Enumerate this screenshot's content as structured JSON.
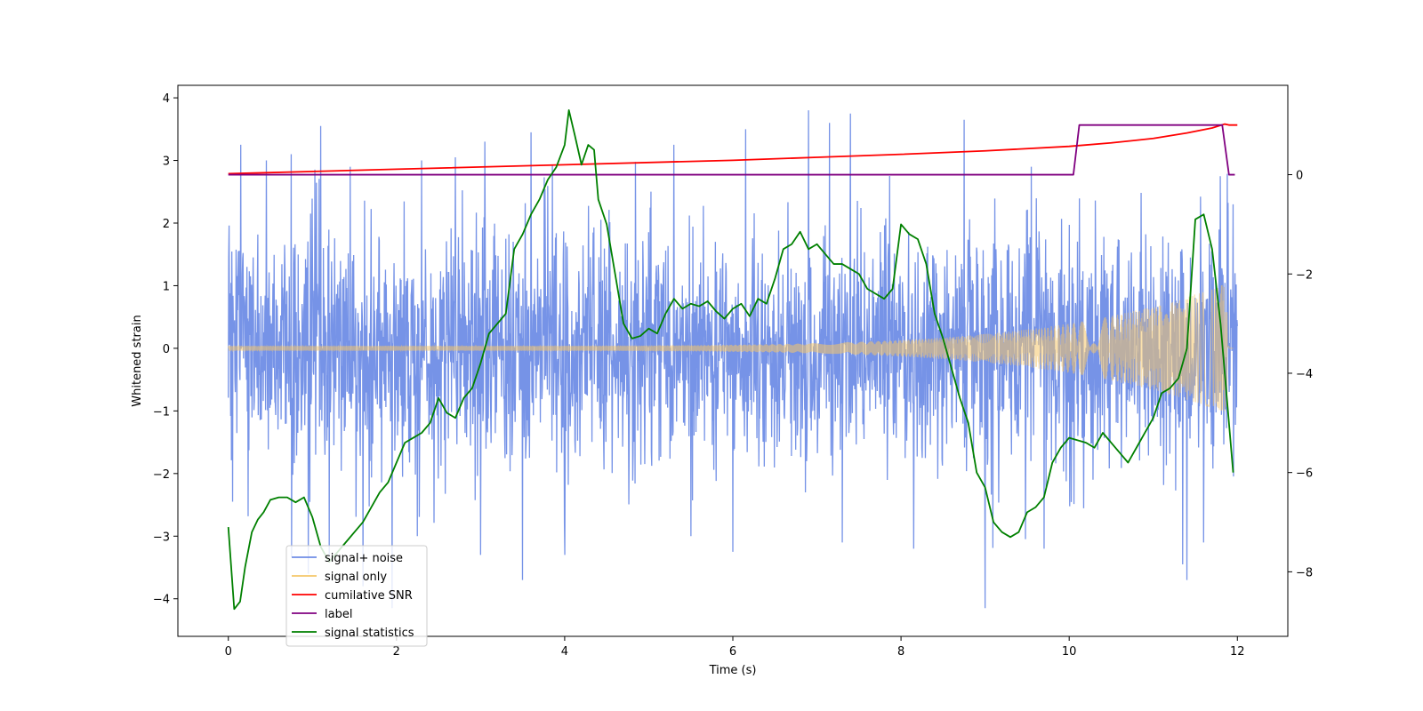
{
  "chart_data": {
    "type": "line",
    "xlabel": "Time (s)",
    "ylabel": "Whitened strain",
    "xlim": [
      -0.6,
      12.6
    ],
    "ylim": [
      -4.6,
      4.2
    ],
    "y2lim": [
      -9.3,
      1.8
    ],
    "xticks": [
      0,
      2,
      4,
      6,
      8,
      10,
      12
    ],
    "yticks": [
      -4,
      -3,
      -2,
      -1,
      0,
      1,
      2,
      3,
      4
    ],
    "y2ticks": [
      -8,
      -6,
      -4,
      -2,
      0
    ],
    "legend_location": "lower-left",
    "series": [
      {
        "name": "signal+ noise",
        "color": "#6f8de6",
        "axis": "left",
        "kind": "noise",
        "t_range": [
          0,
          12
        ],
        "upper_typical": 2.0,
        "lower_typical": -2.0,
        "peaks": [
          [
            0.15,
            3.25
          ],
          [
            0.45,
            3.0
          ],
          [
            0.75,
            3.1
          ],
          [
            1.1,
            3.55
          ],
          [
            1.45,
            2.9
          ],
          [
            2.3,
            3.0
          ],
          [
            2.7,
            3.05
          ],
          [
            3.05,
            3.3
          ],
          [
            3.5,
            3.35
          ],
          [
            3.6,
            3.45
          ],
          [
            5.3,
            3.25
          ],
          [
            6.15,
            3.5
          ],
          [
            6.9,
            3.8
          ],
          [
            7.15,
            3.6
          ],
          [
            7.4,
            3.75
          ],
          [
            8.75,
            3.65
          ],
          [
            9.55,
            2.9
          ],
          [
            11.6,
            3.0
          ],
          [
            11.95,
            2.3
          ]
        ],
        "troughs": [
          [
            0.05,
            -2.45
          ],
          [
            0.95,
            -3.6
          ],
          [
            1.2,
            -3.3
          ],
          [
            1.6,
            -3.8
          ],
          [
            1.95,
            -4.15
          ],
          [
            2.25,
            -3.0
          ],
          [
            3.0,
            -3.3
          ],
          [
            3.5,
            -3.7
          ],
          [
            4.0,
            -3.3
          ],
          [
            5.5,
            -3.0
          ],
          [
            6.0,
            -3.25
          ],
          [
            7.3,
            -3.1
          ],
          [
            8.15,
            -3.2
          ],
          [
            9.0,
            -4.15
          ],
          [
            9.7,
            -3.2
          ],
          [
            11.35,
            -3.45
          ],
          [
            11.4,
            -3.7
          ],
          [
            11.6,
            -3.1
          ]
        ]
      },
      {
        "name": "signal only",
        "color": "#f5c76a",
        "axis": "left",
        "kind": "chirp",
        "t_range": [
          0,
          11.95
        ],
        "amp_start": 0.04,
        "amp_end": 1.05,
        "merger_time": 11.9
      },
      {
        "name": "cumilative SNR",
        "color": "#ff0000",
        "axis": "right",
        "x": [
          0,
          2,
          4,
          6,
          7,
          8,
          9,
          10,
          10.5,
          11,
          11.4,
          11.7,
          11.85,
          11.9,
          12
        ],
        "y": [
          0.02,
          0.11,
          0.2,
          0.29,
          0.35,
          0.41,
          0.48,
          0.57,
          0.64,
          0.73,
          0.84,
          0.94,
          1.02,
          1.0,
          1.0
        ]
      },
      {
        "name": "label",
        "color": "#800080",
        "axis": "right",
        "x": [
          0,
          10.05,
          10.12,
          11.82,
          11.9,
          11.97
        ],
        "y": [
          0,
          0,
          1,
          1,
          0,
          0
        ]
      },
      {
        "name": "signal statistics",
        "color": "#008000",
        "axis": "right",
        "x": [
          0,
          0.07,
          0.14,
          0.2,
          0.28,
          0.35,
          0.42,
          0.5,
          0.6,
          0.7,
          0.8,
          0.9,
          1.0,
          1.1,
          1.2,
          1.3,
          1.4,
          1.5,
          1.6,
          1.7,
          1.8,
          1.9,
          2.0,
          2.1,
          2.2,
          2.3,
          2.4,
          2.5,
          2.6,
          2.7,
          2.8,
          2.9,
          3.0,
          3.1,
          3.2,
          3.3,
          3.4,
          3.5,
          3.6,
          3.7,
          3.8,
          3.9,
          4.0,
          4.05,
          4.12,
          4.2,
          4.28,
          4.35,
          4.4,
          4.5,
          4.6,
          4.7,
          4.8,
          4.9,
          5.0,
          5.1,
          5.2,
          5.3,
          5.4,
          5.5,
          5.6,
          5.7,
          5.8,
          5.9,
          6.0,
          6.1,
          6.2,
          6.3,
          6.4,
          6.5,
          6.6,
          6.7,
          6.8,
          6.9,
          7.0,
          7.1,
          7.2,
          7.3,
          7.4,
          7.5,
          7.6,
          7.7,
          7.8,
          7.9,
          8.0,
          8.1,
          8.2,
          8.3,
          8.4,
          8.5,
          8.6,
          8.7,
          8.8,
          8.9,
          9.0,
          9.1,
          9.2,
          9.3,
          9.4,
          9.5,
          9.6,
          9.7,
          9.8,
          9.9,
          10.0,
          10.1,
          10.2,
          10.3,
          10.4,
          10.5,
          10.6,
          10.7,
          10.8,
          10.9,
          11.0,
          11.1,
          11.2,
          11.3,
          11.4,
          11.5,
          11.6,
          11.7,
          11.8,
          11.95
        ],
        "y": [
          -7.1,
          -8.75,
          -8.6,
          -7.9,
          -7.2,
          -6.95,
          -6.8,
          -6.55,
          -6.5,
          -6.5,
          -6.6,
          -6.5,
          -6.9,
          -7.5,
          -7.8,
          -7.6,
          -7.4,
          -7.2,
          -7.0,
          -6.7,
          -6.4,
          -6.2,
          -5.8,
          -5.4,
          -5.3,
          -5.2,
          -5.0,
          -4.5,
          -4.8,
          -4.9,
          -4.5,
          -4.3,
          -3.8,
          -3.2,
          -3.0,
          -2.8,
          -1.5,
          -1.2,
          -0.8,
          -0.5,
          -0.1,
          0.15,
          0.6,
          1.3,
          0.8,
          0.2,
          0.6,
          0.5,
          -0.5,
          -1.0,
          -2.0,
          -3.0,
          -3.3,
          -3.25,
          -3.1,
          -3.2,
          -2.8,
          -2.5,
          -2.7,
          -2.6,
          -2.65,
          -2.55,
          -2.75,
          -2.9,
          -2.7,
          -2.6,
          -2.85,
          -2.5,
          -2.6,
          -2.1,
          -1.5,
          -1.4,
          -1.15,
          -1.5,
          -1.4,
          -1.6,
          -1.8,
          -1.8,
          -1.9,
          -2.0,
          -2.3,
          -2.4,
          -2.5,
          -2.3,
          -1.0,
          -1.2,
          -1.3,
          -1.8,
          -2.8,
          -3.3,
          -3.9,
          -4.5,
          -5.0,
          -6.0,
          -6.3,
          -7.0,
          -7.2,
          -7.3,
          -7.2,
          -6.8,
          -6.7,
          -6.5,
          -5.8,
          -5.5,
          -5.3,
          -5.35,
          -5.4,
          -5.5,
          -5.2,
          -5.4,
          -5.6,
          -5.8,
          -5.5,
          -5.2,
          -4.9,
          -4.4,
          -4.3,
          -4.1,
          -3.5,
          -0.9,
          -0.8,
          -1.5,
          -3.0,
          -6.0
        ]
      }
    ]
  }
}
